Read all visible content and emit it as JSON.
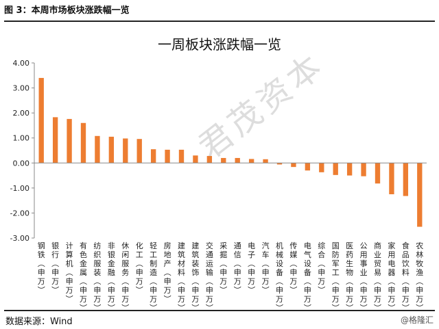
{
  "caption": "图 3：本周市场板块涨跌幅一览",
  "source": "数据来源：Wind",
  "watermark": "君茂资本",
  "credit": "@格隆汇",
  "chart_data": {
    "type": "bar",
    "title": "一周板块涨跌幅一览",
    "xlabel": "",
    "ylabel": "",
    "ylim": [
      -3,
      4
    ],
    "yticks": [
      "4.00",
      "3.00",
      "2.00",
      "1.00",
      "0.00",
      "-1.00",
      "-2.00",
      "-3.00"
    ],
    "grid": false,
    "bar_color": "#ED7D31",
    "categories": [
      "钢铁(申万)",
      "银行(申万)",
      "计算机(申万)",
      "有色金属(申万)",
      "纺织服装(申万)",
      "非银金融(申万)",
      "休闲服务(申万)",
      "化工(申万)",
      "轻工制造(申万)",
      "房地产(申万)",
      "建筑材料(申万)",
      "建筑装饰(申万)",
      "交通运输(申万)",
      "采掘(申万)",
      "通信(申万)",
      "电子(申万)",
      "汽车(申万)",
      "机械设备(申万)",
      "传媒(申万)",
      "电气设备(申万)",
      "综合(申万)",
      "国防军工(申万)",
      "医药生物(申万)",
      "公用事业(申万)",
      "商业贸易(申万)",
      "家用电器(申万)",
      "食品饮料(申万)",
      "农林牧渔(申万)"
    ],
    "values": [
      3.4,
      1.83,
      1.76,
      1.6,
      1.08,
      1.05,
      0.98,
      0.96,
      0.55,
      0.53,
      0.53,
      0.3,
      0.28,
      0.2,
      0.2,
      0.16,
      0.15,
      -0.06,
      -0.16,
      -0.3,
      -0.37,
      -0.48,
      -0.5,
      -0.53,
      -0.82,
      -1.25,
      -1.32,
      -2.55
    ]
  }
}
